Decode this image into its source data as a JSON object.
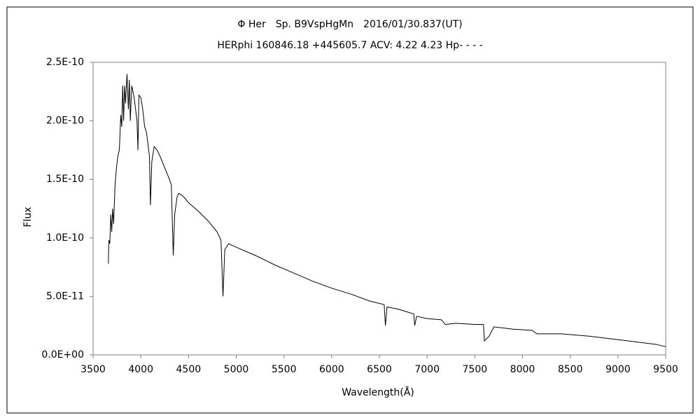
{
  "chart_data": {
    "type": "line",
    "title": "Φ Her　Sp. B9VspHgMn　2016/01/30.837(UT)",
    "subtitle": "HERphi 160846.18 +445605.7 ACV: 4.22 4.23 Hp- - - -",
    "x_label": "Wavelength(Å)",
    "y_label": "Flux",
    "color": "#000000",
    "grid": false,
    "x": [
      3660,
      3665,
      3675,
      3685,
      3695,
      3705,
      3715,
      3730,
      3745,
      3760,
      3775,
      3790,
      3800,
      3810,
      3820,
      3830,
      3840,
      3855,
      3870,
      3880,
      3890,
      3905,
      3930,
      3960,
      3970,
      3980,
      4000,
      4020,
      4040,
      4060,
      4090,
      4101,
      4115,
      4140,
      4170,
      4200,
      4250,
      4300,
      4320,
      4340,
      4355,
      4380,
      4400,
      4450,
      4500,
      4600,
      4700,
      4800,
      4840,
      4861,
      4880,
      4920,
      5000,
      5200,
      5400,
      5600,
      5800,
      6000,
      6200,
      6400,
      6550,
      6563,
      6580,
      6700,
      6860,
      6870,
      6890,
      7000,
      7150,
      7190,
      7300,
      7500,
      7590,
      7600,
      7650,
      7700,
      7900,
      8100,
      8150,
      8400,
      8700,
      9000,
      9200,
      9400,
      9500
    ],
    "values": [
      7.8e-11,
      9.8e-11,
      9.5e-11,
      1.2e-10,
      1.05e-10,
      1.25e-10,
      1.12e-10,
      1.45e-10,
      1.6e-10,
      1.7e-10,
      1.75e-10,
      2.05e-10,
      1.95e-10,
      2.3e-10,
      2e-10,
      2.3e-10,
      2.15e-10,
      2.4e-10,
      2.1e-10,
      2.35e-10,
      2e-10,
      2.3e-10,
      2.2e-10,
      2e-10,
      1.75e-10,
      2.22e-10,
      2.2e-10,
      2.1e-10,
      1.95e-10,
      1.9e-10,
      1.7e-10,
      1.28e-10,
      1.65e-10,
      1.78e-10,
      1.75e-10,
      1.7e-10,
      1.6e-10,
      1.5e-10,
      1.45e-10,
      8.5e-11,
      1.2e-10,
      1.35e-10,
      1.38e-10,
      1.35e-10,
      1.3e-10,
      1.23e-10,
      1.15e-10,
      1.05e-10,
      9.8e-11,
      5e-11,
      9e-11,
      9.5e-11,
      9.2e-11,
      8.5e-11,
      7.7e-11,
      7e-11,
      6.3e-11,
      5.7e-11,
      5.2e-11,
      4.6e-11,
      4.3e-11,
      2.5e-11,
      4.1e-11,
      3.9e-11,
      3.5e-11,
      2.5e-11,
      3.3e-11,
      3.1e-11,
      3e-11,
      2.6e-11,
      2.7e-11,
      2.6e-11,
      2.6e-11,
      1.2e-11,
      1.6e-11,
      2.4e-11,
      2.2e-11,
      2.1e-11,
      1.8e-11,
      1.8e-11,
      1.6e-11,
      1.3e-11,
      1.1e-11,
      9e-12,
      7e-12
    ],
    "xlim": [
      3500,
      9500
    ],
    "xticks": [
      3500,
      4000,
      4500,
      5000,
      5500,
      6000,
      6500,
      7000,
      7500,
      8000,
      8500,
      9000,
      9500
    ],
    "ylim": [
      0,
      2.5e-10
    ],
    "yticks": [
      {
        "value": 0,
        "label": "0.0E+00"
      },
      {
        "value": 5e-11,
        "label": "5.0E-11"
      },
      {
        "value": 1e-10,
        "label": "1.0E-10"
      },
      {
        "value": 1.5e-10,
        "label": "1.5E-10"
      },
      {
        "value": 2e-10,
        "label": "2.0E-10"
      },
      {
        "value": 2.5e-10,
        "label": "2.5E-10"
      }
    ]
  }
}
